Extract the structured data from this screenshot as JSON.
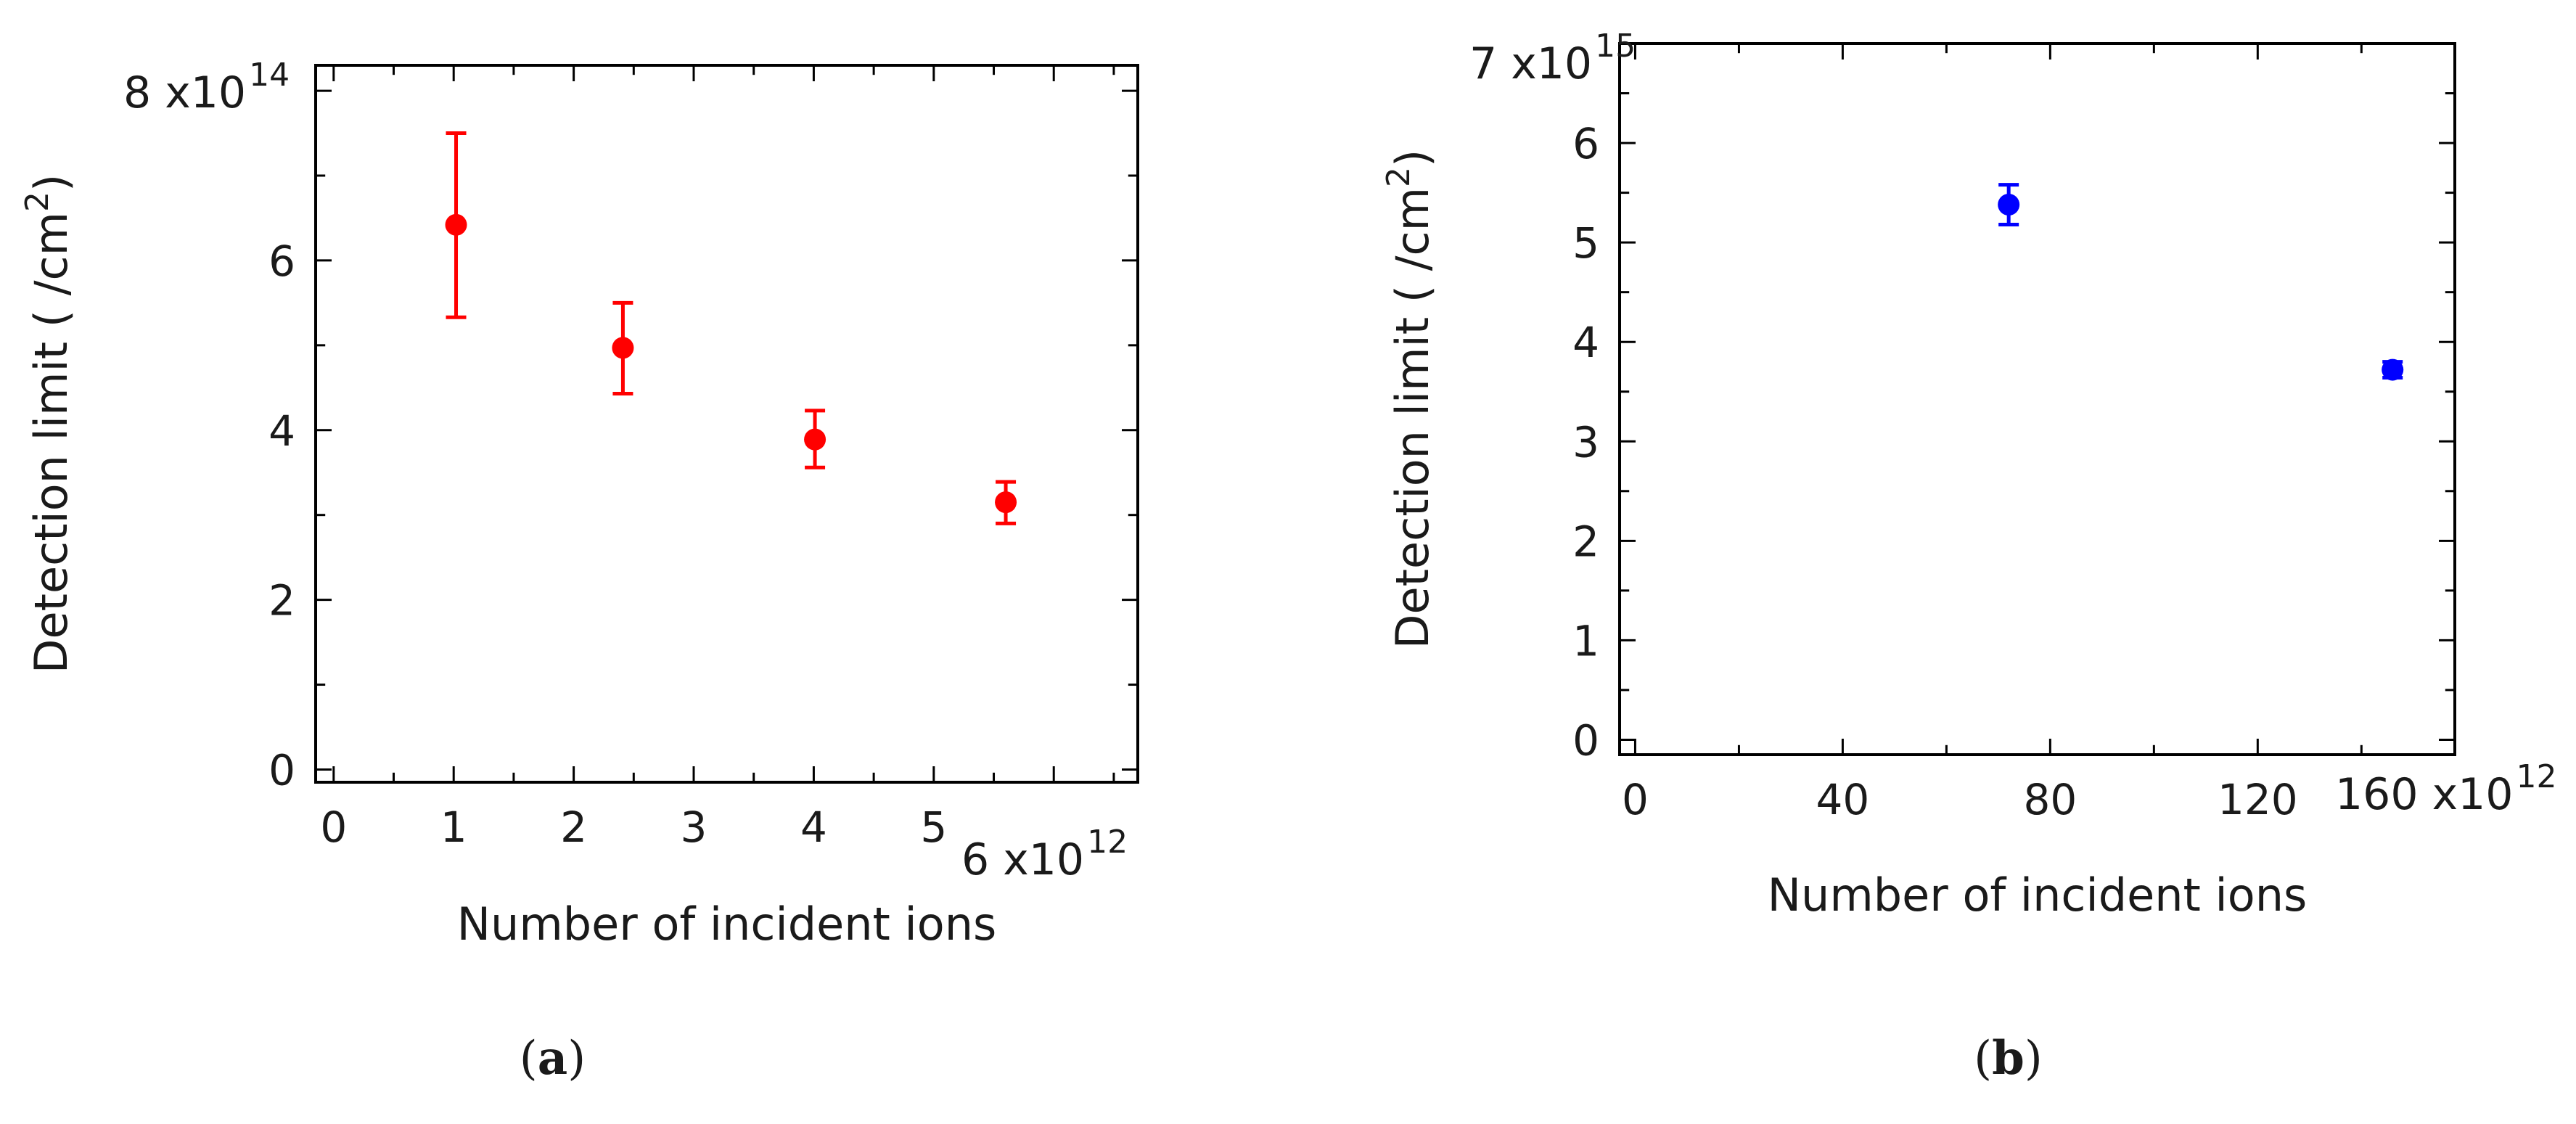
{
  "chart_data": [
    {
      "type": "scatter",
      "panel_label": "(a)",
      "panel_letter": "a",
      "title": "",
      "xlabel": "Number of incident ions",
      "ylabel": "Detection limit ( /cm",
      "ylabel_sup": "2",
      "ylabel_close": ")",
      "x_multiplier": "6 x10",
      "x_multiplier_exp": "12",
      "y_multiplier": "8 x10",
      "y_multiplier_exp": "14",
      "xlim": [
        -0.15,
        6.7
      ],
      "ylim": [
        -0.15,
        8.3
      ],
      "xticks": [
        0,
        1,
        2,
        3,
        4,
        5
      ],
      "xtick_labels": [
        "0",
        "1",
        "2",
        "3",
        "4",
        "5"
      ],
      "yticks": [
        0,
        2,
        4,
        6
      ],
      "ytick_labels": [
        "0",
        "2",
        "4",
        "6"
      ],
      "grid": false,
      "marker_color": "#ff0000",
      "series": [
        {
          "x": [
            1.02,
            2.41,
            4.01,
            5.6
          ],
          "y": [
            6.42,
            4.97,
            3.89,
            3.15
          ],
          "err_low": [
            5.33,
            4.43,
            3.56,
            2.9
          ],
          "err_high": [
            7.5,
            5.5,
            4.23,
            3.39
          ]
        }
      ]
    },
    {
      "type": "scatter",
      "panel_label": "(b)",
      "panel_letter": "b",
      "title": "",
      "xlabel": "Number of incident ions",
      "ylabel": "Detection limit ( /cm",
      "ylabel_sup": "2",
      "ylabel_close": ")",
      "x_multiplier": "160 x10",
      "x_multiplier_exp": "12",
      "y_multiplier": "7 x10",
      "y_multiplier_exp": "15",
      "xlim": [
        -3,
        158
      ],
      "ylim": [
        -0.15,
        7.0
      ],
      "xticks": [
        0,
        40,
        80,
        120
      ],
      "xtick_labels": [
        "0",
        "40",
        "80",
        "120"
      ],
      "yticks": [
        0,
        1,
        2,
        3,
        4,
        5,
        6
      ],
      "ytick_labels": [
        "0",
        "1",
        "2",
        "3",
        "4",
        "5",
        "6"
      ],
      "grid": false,
      "marker_color": "#0000ff",
      "series": [
        {
          "x": [
            72,
            146
          ],
          "y": [
            5.38,
            3.72
          ],
          "err_low": [
            5.18,
            3.64
          ],
          "err_high": [
            5.58,
            3.8
          ]
        }
      ]
    }
  ]
}
